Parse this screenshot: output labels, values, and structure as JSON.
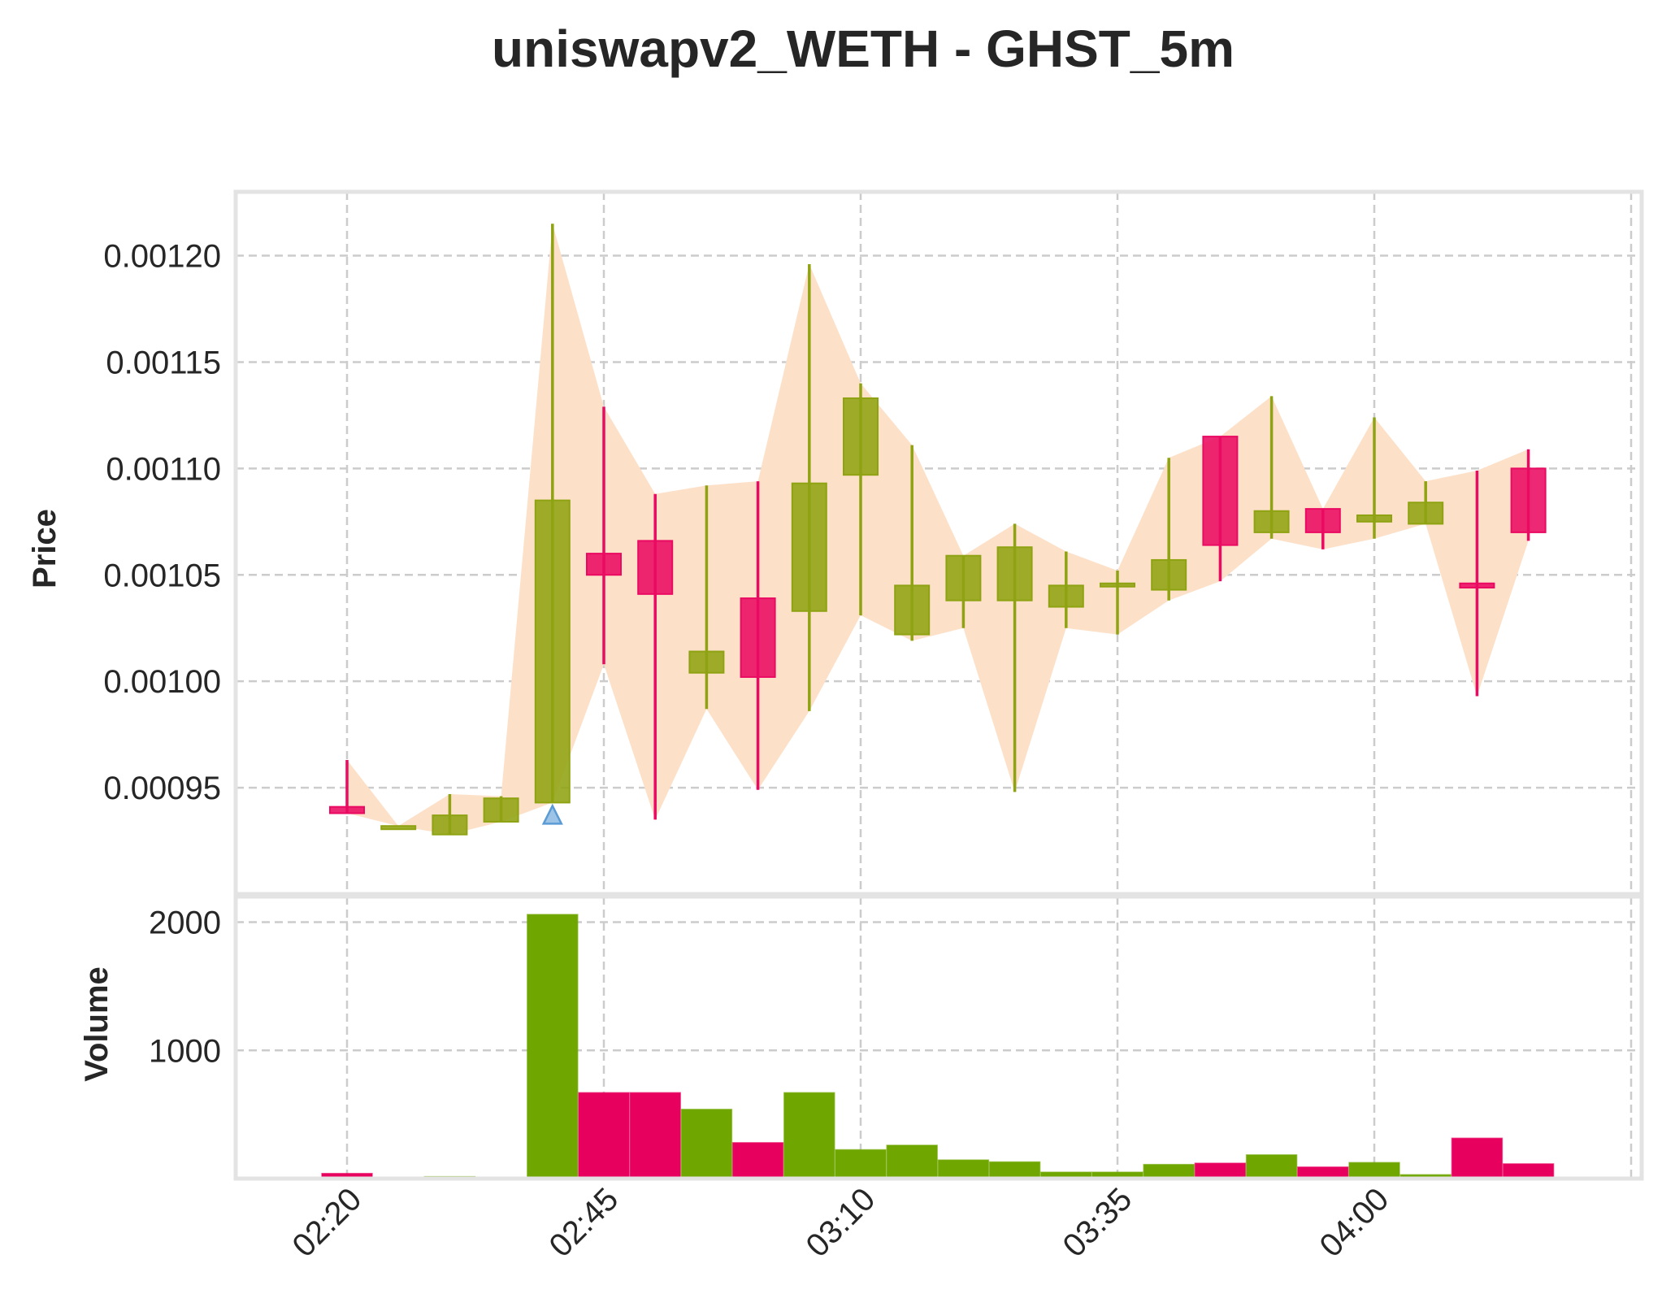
{
  "chart_data": {
    "type": "candlestick",
    "title": "uniswapv2_WETH - GHST_5m",
    "price_panel": {
      "ylabel": "Price",
      "yticks": [
        "0.00095",
        "0.00100",
        "0.00105",
        "0.00110",
        "0.00115",
        "0.00120"
      ],
      "ylim": [
        0.0009,
        0.00123
      ],
      "grid": true
    },
    "volume_panel": {
      "ylabel": "Volume",
      "yticks": [
        "1000",
        "2000"
      ],
      "ylim": [
        0,
        2200
      ],
      "grid": true
    },
    "xticks": [
      "02:20",
      "02:45",
      "03:10",
      "03:35",
      "04:00"
    ],
    "colors": {
      "up": "#8fa312",
      "down": "#ea0a62",
      "up_volume": "#6fa600",
      "down_volume": "#e8005f",
      "band": "#fde0c8",
      "buy_marker": "#5b9bd5"
    },
    "candles": [
      {
        "time": "02:20",
        "open": 0.000941,
        "high": 0.000963,
        "low": 0.000938,
        "close": 0.000938,
        "volume": 40
      },
      {
        "time": "02:25",
        "open": 0.000932,
        "high": 0.000932,
        "low": 0.000932,
        "close": 0.000932,
        "volume": 0
      },
      {
        "time": "02:30",
        "open": 0.000928,
        "high": 0.000947,
        "low": 0.000928,
        "close": 0.000937,
        "volume": 15
      },
      {
        "time": "02:35",
        "open": 0.000934,
        "high": 0.000946,
        "low": 0.000934,
        "close": 0.000945,
        "volume": 5
      },
      {
        "time": "02:40",
        "open": 0.000943,
        "high": 0.001215,
        "low": 0.000943,
        "close": 0.001085,
        "volume": 2060
      },
      {
        "time": "02:45",
        "open": 0.00106,
        "high": 0.001129,
        "low": 0.001008,
        "close": 0.00105,
        "volume": 670
      },
      {
        "time": "02:50",
        "open": 0.001066,
        "high": 0.001088,
        "low": 0.000935,
        "close": 0.001041,
        "volume": 670
      },
      {
        "time": "02:55",
        "open": 0.001004,
        "high": 0.001092,
        "low": 0.000987,
        "close": 0.001014,
        "volume": 540
      },
      {
        "time": "03:00",
        "open": 0.001039,
        "high": 0.001094,
        "low": 0.000949,
        "close": 0.001002,
        "volume": 280
      },
      {
        "time": "03:05",
        "open": 0.001033,
        "high": 0.001196,
        "low": 0.000986,
        "close": 0.001093,
        "volume": 670
      },
      {
        "time": "03:10",
        "open": 0.001097,
        "high": 0.00114,
        "low": 0.001031,
        "close": 0.001133,
        "volume": 225
      },
      {
        "time": "03:15",
        "open": 0.001022,
        "high": 0.001111,
        "low": 0.001019,
        "close": 0.001045,
        "volume": 260
      },
      {
        "time": "03:20",
        "open": 0.001038,
        "high": 0.001059,
        "low": 0.001025,
        "close": 0.001059,
        "volume": 145
      },
      {
        "time": "03:25",
        "open": 0.001038,
        "high": 0.001074,
        "low": 0.000948,
        "close": 0.001063,
        "volume": 130
      },
      {
        "time": "03:30",
        "open": 0.001035,
        "high": 0.001061,
        "low": 0.001025,
        "close": 0.001045,
        "volume": 50
      },
      {
        "time": "03:35",
        "open": 0.001046,
        "high": 0.001052,
        "low": 0.001022,
        "close": 0.001046,
        "volume": 50
      },
      {
        "time": "03:40",
        "open": 0.001043,
        "high": 0.001105,
        "low": 0.001038,
        "close": 0.001057,
        "volume": 110
      },
      {
        "time": "03:45",
        "open": 0.001115,
        "high": 0.001115,
        "low": 0.001047,
        "close": 0.001064,
        "volume": 120
      },
      {
        "time": "03:50",
        "open": 0.00107,
        "high": 0.001134,
        "low": 0.001067,
        "close": 0.00108,
        "volume": 185
      },
      {
        "time": "03:55",
        "open": 0.001081,
        "high": 0.001081,
        "low": 0.001062,
        "close": 0.00107,
        "volume": 90
      },
      {
        "time": "04:00",
        "open": 0.001075,
        "high": 0.001124,
        "low": 0.001067,
        "close": 0.001078,
        "volume": 125
      },
      {
        "time": "04:05",
        "open": 0.001074,
        "high": 0.001094,
        "low": 0.001074,
        "close": 0.001084,
        "volume": 30
      },
      {
        "time": "04:10",
        "open": 0.001046,
        "high": 0.001099,
        "low": 0.000993,
        "close": 0.001044,
        "volume": 315
      },
      {
        "time": "04:15",
        "open": 0.0011,
        "high": 0.001109,
        "low": 0.001066,
        "close": 0.00107,
        "volume": 115
      }
    ],
    "buy_signals": [
      {
        "time": "02:40",
        "price": 0.000943
      }
    ]
  }
}
